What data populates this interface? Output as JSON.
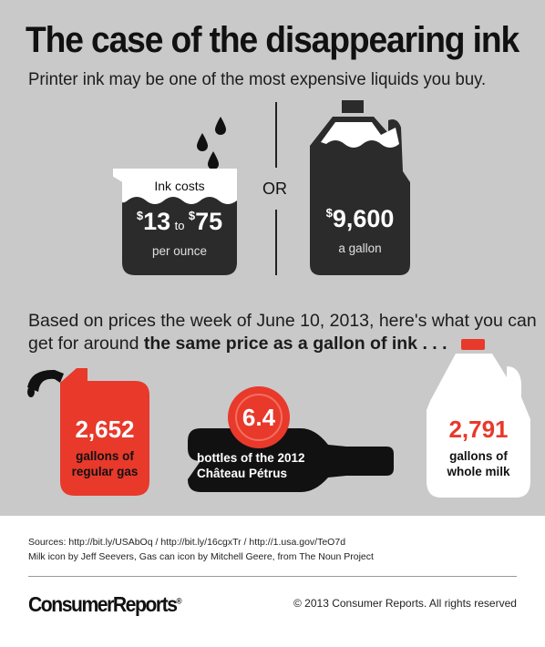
{
  "header": {
    "title": "The case of the disappearing ink",
    "subtitle": "Printer ink may be one of the most expensive liquids you buy."
  },
  "comparison": {
    "ink": {
      "label": "Ink costs",
      "low_symbol": "$",
      "low": "13",
      "to": "to",
      "high_symbol": "$",
      "high": "75",
      "unit": "per ounce"
    },
    "or_label": "OR",
    "gallon": {
      "symbol": "$",
      "value": "9,600",
      "unit": "a gallon"
    }
  },
  "based": {
    "line1": "Based on prices the week of June 10, 2013, here's what you can",
    "line2_plain": "get for around ",
    "line2_bold": "the same price as a gallon of ink . . ."
  },
  "items": {
    "gas": {
      "value": "2,652",
      "line1": "gallons of",
      "line2": "regular gas"
    },
    "wine": {
      "value": "6.4",
      "line1": "bottles of the 2012",
      "line2": "Château Pétrus"
    },
    "milk": {
      "value": "2,791",
      "line1": "gallons of",
      "line2": "whole milk"
    }
  },
  "footer": {
    "sources": "Sources: http://bit.ly/USAbOq  /  http://bit.ly/16cgxTr  /  http://1.usa.gov/TeO7d",
    "credit": "Milk icon by Jeff Seevers, Gas can icon by Mitchell Geere, from The Noun Project",
    "logo": "ConsumerReports",
    "logo_mark": "®",
    "copyright": "© 2013 Consumer Reports. All rights reserved"
  },
  "colors": {
    "background": "#c9c9c9",
    "dark": "#2b2b2b",
    "accent_red": "#e8392b",
    "white": "#ffffff"
  },
  "icons": [
    "ink-drop-icon",
    "beaker-icon",
    "jug-icon",
    "gas-can-icon",
    "wine-bottle-icon",
    "wax-seal-icon",
    "milk-jug-icon"
  ]
}
